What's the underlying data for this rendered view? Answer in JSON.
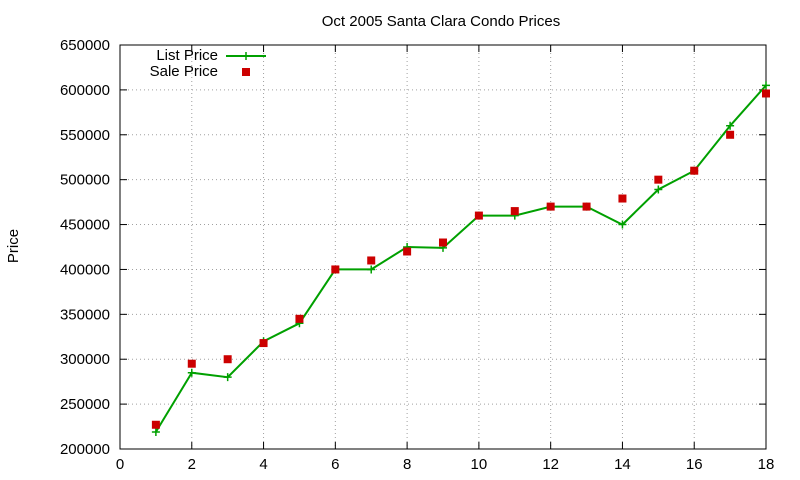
{
  "chart_data": {
    "type": "line",
    "title": "Oct 2005 Santa Clara Condo Prices",
    "xlabel": "",
    "ylabel": "Price",
    "xlim": [
      0,
      18
    ],
    "ylim": [
      200000,
      650000
    ],
    "xticks": [
      0,
      2,
      4,
      6,
      8,
      10,
      12,
      14,
      16,
      18
    ],
    "yticks": [
      200000,
      250000,
      300000,
      350000,
      400000,
      450000,
      500000,
      550000,
      600000,
      650000
    ],
    "grid": true,
    "legend_position": "top-left",
    "series": [
      {
        "name": "List Price",
        "style": "line-plus",
        "color": "#00a000",
        "x": [
          1,
          2,
          3,
          4,
          5,
          6,
          7,
          8,
          9,
          10,
          11,
          12,
          13,
          14,
          15,
          16,
          17,
          18
        ],
        "values": [
          219000,
          285000,
          280000,
          320000,
          340000,
          400000,
          400000,
          425000,
          424000,
          460000,
          460000,
          470000,
          470000,
          450000,
          489000,
          510000,
          560000,
          605000
        ]
      },
      {
        "name": "Sale Price",
        "style": "square-markers",
        "color": "#cc0000",
        "x": [
          1,
          2,
          3,
          4,
          5,
          6,
          7,
          8,
          9,
          10,
          11,
          12,
          13,
          14,
          15,
          16,
          17,
          18
        ],
        "values": [
          227000,
          295000,
          300000,
          318000,
          345000,
          400000,
          410000,
          420000,
          430000,
          460000,
          465000,
          470000,
          470000,
          479000,
          500000,
          510000,
          550000,
          596000
        ]
      }
    ]
  }
}
